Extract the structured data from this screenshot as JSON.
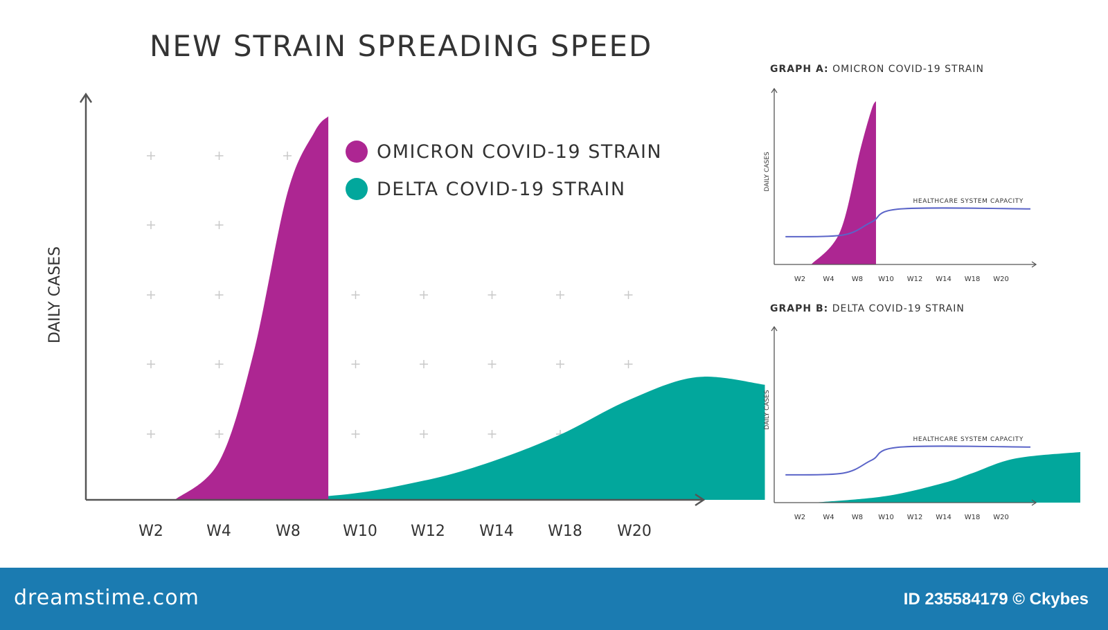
{
  "colors": {
    "omicron": "#ad2692",
    "delta": "#02a79c",
    "capacity": "#5a64c8",
    "axis": "#555555",
    "text": "#333333",
    "grid_plus": "#c8c8c8",
    "footer": "#1b7bb1"
  },
  "main": {
    "title": "NEW STRAIN SPREADING SPEED",
    "legend": [
      {
        "label": "OMICRON COVID-19 STRAIN",
        "color": "#ad2692"
      },
      {
        "label": "DELTA COVID-19 STRAIN",
        "color": "#02a79c"
      }
    ]
  },
  "graph_a": {
    "prefix": "GRAPH A:",
    "title": "OMICRON COVID-19 STRAIN",
    "ylabel": "DAILY CASES",
    "capacity_label": "HEALTHCARE SYSTEM CAPACITY"
  },
  "graph_b": {
    "prefix": "GRAPH B:",
    "title": "DELTA COVID-19 STRAIN",
    "ylabel": "DAILY CASES",
    "capacity_label": "HEALTHCARE SYSTEM CAPACITY"
  },
  "footer": {
    "logo": "dreamstime.com",
    "id_text": "ID 235584179 © Ckybes"
  },
  "chart_data": [
    {
      "type": "area",
      "title": "NEW STRAIN SPREADING SPEED",
      "xlabel": "",
      "ylabel": "DAILY CASES",
      "categories": [
        "W2",
        "W4",
        "W8",
        "W10",
        "W12",
        "W14",
        "W18",
        "W20"
      ],
      "legend_position": "top-right",
      "grid": true,
      "ylim": [
        0,
        100
      ],
      "series": [
        {
          "name": "OMICRON COVID-19 STRAIN",
          "color": "#ad2692",
          "points": [
            [
              0.35,
              0
            ],
            [
              1,
              10
            ],
            [
              1.5,
              38
            ],
            [
              2,
              80
            ],
            [
              2.4,
              96
            ],
            [
              2.6,
              100
            ]
          ]
        },
        {
          "name": "DELTA COVID-19 STRAIN",
          "color": "#02a79c",
          "points": [
            [
              0.35,
              0
            ],
            [
              2.6,
              1
            ],
            [
              4,
              5
            ],
            [
              5,
              10
            ],
            [
              6,
              17
            ],
            [
              7,
              26
            ],
            [
              8,
              32
            ],
            [
              9,
              30
            ]
          ]
        }
      ]
    },
    {
      "type": "area",
      "title": "GRAPH A: OMICRON COVID-19 STRAIN",
      "ylabel": "DAILY CASES",
      "categories": [
        "W2",
        "W4",
        "W8",
        "W10",
        "W12",
        "W14",
        "W18",
        "W20"
      ],
      "ylim": [
        0,
        100
      ],
      "series": [
        {
          "name": "OMICRON COVID-19 STRAIN",
          "color": "#ad2692",
          "points": [
            [
              0.4,
              0
            ],
            [
              1.4,
              20
            ],
            [
              2.1,
              70
            ],
            [
              2.5,
              95
            ],
            [
              2.65,
              100
            ]
          ]
        },
        {
          "name": "HEALTHCARE SYSTEM CAPACITY",
          "color": "#5a64c8",
          "points": [
            [
              -0.5,
              17
            ],
            [
              1.5,
              18
            ],
            [
              2.5,
              26
            ],
            [
              3.5,
              34
            ],
            [
              9.8,
              34
            ]
          ]
        }
      ]
    },
    {
      "type": "area",
      "title": "GRAPH B: DELTA COVID-19 STRAIN",
      "ylabel": "DAILY CASES",
      "categories": [
        "W2",
        "W4",
        "W8",
        "W10",
        "W12",
        "W14",
        "W18",
        "W20"
      ],
      "ylim": [
        0,
        100
      ],
      "series": [
        {
          "name": "DELTA COVID-19 STRAIN",
          "color": "#02a79c",
          "points": [
            [
              0.5,
              0
            ],
            [
              3,
              4
            ],
            [
              5,
              12
            ],
            [
              6,
              18
            ],
            [
              7.5,
              27
            ],
            [
              9.8,
              31
            ]
          ]
        },
        {
          "name": "HEALTHCARE SYSTEM CAPACITY",
          "color": "#5a64c8",
          "points": [
            [
              -0.5,
              17
            ],
            [
              1.5,
              18
            ],
            [
              2.5,
              26
            ],
            [
              3.5,
              34
            ],
            [
              9.8,
              34
            ]
          ]
        }
      ]
    }
  ]
}
